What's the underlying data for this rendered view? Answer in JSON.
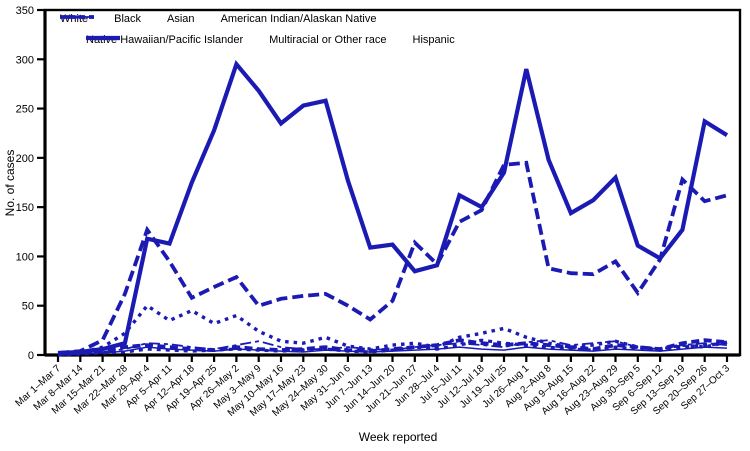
{
  "chart_data": {
    "type": "line",
    "title": "",
    "xlabel": "Week reported",
    "ylabel": "No. of cases",
    "ylim": [
      0,
      350
    ],
    "yticks": [
      0,
      50,
      100,
      150,
      200,
      250,
      300,
      350
    ],
    "grid": false,
    "legend_position": "top-left-inside",
    "line_color": "#1b1bb4",
    "axis_color": "#000000",
    "categories": [
      "Mar 1–Mar 7",
      "Mar 8–Mar 14",
      "Mar 15–Mar 21",
      "Mar 22–Mar 28",
      "Mar 29–Apr 4",
      "Apr 5–Apr 11",
      "Apr 12–Apr 18",
      "Apr 19–Apr 25",
      "Apr 26–May 2",
      "May 3–May 9",
      "May 10–May 16",
      "May 17–May 23",
      "May 24–May 30",
      "May 31–Jun 6",
      "Jun 7–Jun 13",
      "Jun 14–Jun 20",
      "Jun 21–Jun 27",
      "Jun 28–Jul 4",
      "Jul 5–Jul 11",
      "Jul 12–Jul 18",
      "Jul 19–Jul 25",
      "Jul 26–Aug 1",
      "Aug 2–Aug 8",
      "Aug 9–Aug 15",
      "Aug 16–Aug 22",
      "Aug 23–Aug 29",
      "Aug 30–Sep 5",
      "Sep 6–Sep 12",
      "Sep 13–Sep 19",
      "Sep 20–Sep 26",
      "Sep 27–Oct 3"
    ],
    "series": [
      {
        "name": "White",
        "style": "thick-long-dash",
        "values": [
          2,
          4,
          15,
          62,
          127,
          95,
          58,
          69,
          79,
          50,
          57,
          60,
          62,
          50,
          36,
          55,
          114,
          92,
          135,
          147,
          193,
          195,
          88,
          83,
          82,
          95,
          63,
          97,
          178,
          156,
          162
        ]
      },
      {
        "name": "Black",
        "style": "thick-short-dash",
        "values": [
          0,
          1,
          2,
          3,
          6,
          5,
          4,
          5,
          6,
          5,
          4,
          5,
          6,
          4,
          3,
          5,
          8,
          6,
          10,
          15,
          12,
          10,
          8,
          6,
          5,
          8,
          6,
          5,
          8,
          10,
          12
        ]
      },
      {
        "name": "Asian",
        "style": "thin-solid",
        "values": [
          0,
          1,
          2,
          4,
          8,
          6,
          5,
          4,
          6,
          5,
          4,
          3,
          5,
          4,
          3,
          4,
          5,
          6,
          8,
          6,
          5,
          8,
          6,
          5,
          4,
          6,
          5,
          4,
          6,
          8,
          7
        ]
      },
      {
        "name": "American Indian/Alaskan Native",
        "style": "thin-dash-dot",
        "values": [
          0,
          1,
          3,
          6,
          12,
          11,
          8,
          6,
          10,
          14,
          8,
          6,
          6,
          8,
          6,
          5,
          8,
          10,
          12,
          10,
          8,
          13,
          15,
          10,
          12,
          14,
          8,
          6,
          10,
          12,
          10
        ]
      },
      {
        "name": "Native Hawaiian/Pacific Islander",
        "style": "thick-dot",
        "values": [
          1,
          2,
          8,
          22,
          50,
          35,
          45,
          32,
          40,
          24,
          14,
          12,
          18,
          9,
          6,
          10,
          12,
          8,
          18,
          22,
          27,
          18,
          12,
          8,
          10,
          14,
          8,
          6,
          10,
          8,
          13
        ]
      },
      {
        "name": "Multiracial or Other race",
        "style": "thick-dash",
        "values": [
          1,
          2,
          4,
          8,
          10,
          8,
          6,
          5,
          8,
          6,
          5,
          6,
          8,
          5,
          4,
          6,
          8,
          10,
          15,
          12,
          10,
          12,
          10,
          8,
          6,
          10,
          8,
          6,
          12,
          15,
          13
        ]
      },
      {
        "name": "Hispanic",
        "style": "thick-solid",
        "values": [
          2,
          3,
          6,
          12,
          118,
          113,
          175,
          228,
          295,
          268,
          235,
          253,
          258,
          177,
          109,
          112,
          85,
          91,
          162,
          150,
          185,
          290,
          198,
          144,
          157,
          180,
          111,
          98,
          127,
          237,
          223
        ]
      }
    ]
  }
}
